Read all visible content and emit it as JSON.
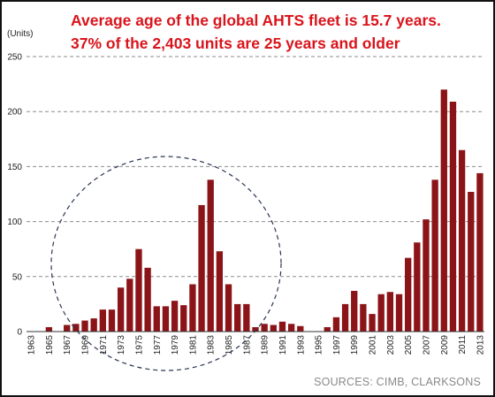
{
  "chart_data": {
    "type": "bar",
    "title_lines": [
      "Average age of the global AHTS fleet is 15.7 years.",
      "37% of the 2,403 units are 25 years and older"
    ],
    "ylabel": "(Units)",
    "ylim": [
      0,
      250
    ],
    "yticks": [
      0,
      50,
      100,
      150,
      200,
      250
    ],
    "grid": "horizontal-dashed",
    "bar_color": "#8b1418",
    "annotation": "dashed circle around 1967-1987",
    "source": "SOURCES: CIMB, CLARKSONS",
    "categories": [
      1963,
      1964,
      1965,
      1966,
      1967,
      1968,
      1969,
      1970,
      1971,
      1972,
      1973,
      1974,
      1975,
      1976,
      1977,
      1978,
      1979,
      1980,
      1981,
      1982,
      1983,
      1984,
      1985,
      1986,
      1987,
      1988,
      1989,
      1990,
      1991,
      1992,
      1993,
      1994,
      1995,
      1996,
      1997,
      1998,
      1999,
      2000,
      2001,
      2002,
      2003,
      2004,
      2005,
      2006,
      2007,
      2008,
      2009,
      2010,
      2011,
      2012,
      2013
    ],
    "tick_labels": [
      1963,
      1965,
      1967,
      1969,
      1971,
      1973,
      1975,
      1977,
      1979,
      1981,
      1983,
      1985,
      1987,
      1989,
      1991,
      1993,
      1995,
      1997,
      1999,
      2001,
      2003,
      2005,
      2007,
      2009,
      2011,
      2013
    ],
    "values": [
      0,
      0,
      4,
      0,
      6,
      7,
      10,
      12,
      20,
      20,
      40,
      48,
      75,
      58,
      23,
      23,
      28,
      24,
      43,
      115,
      138,
      73,
      43,
      25,
      25,
      4,
      7,
      6,
      9,
      7,
      5,
      0,
      0,
      4,
      13,
      25,
      37,
      25,
      16,
      34,
      36,
      34,
      67,
      81,
      102,
      138,
      220,
      209,
      165,
      127,
      144
    ]
  }
}
